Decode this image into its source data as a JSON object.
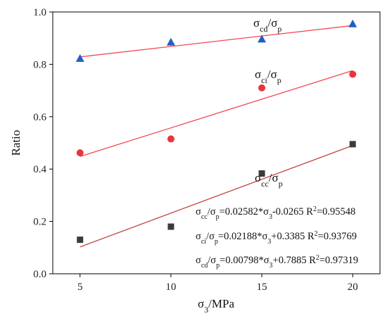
{
  "chart_data": {
    "type": "scatter",
    "xlabel_parts": [
      {
        "text": "σ",
        "sub": false
      },
      {
        "text": "3",
        "sub": true
      },
      {
        "text": "/MPa",
        "sub": false
      }
    ],
    "ylabel": "Ratio",
    "xlim": [
      3.5,
      21.5
    ],
    "ylim": [
      0,
      1.0
    ],
    "x_ticks": [
      5,
      10,
      15,
      20
    ],
    "y_ticks": [
      0.0,
      0.2,
      0.4,
      0.6,
      0.8,
      1.0
    ],
    "x_tick_labels": [
      "5",
      "10",
      "15",
      "20"
    ],
    "y_tick_labels": [
      "0.0",
      "0.2",
      "0.4",
      "0.6",
      "0.8",
      "1.0"
    ],
    "grid": false,
    "series": [
      {
        "key": "cd",
        "marker": "triangle",
        "color": "#1f5fc8",
        "fit_color": "#f2484f",
        "label_parts": [
          {
            "text": "σ",
            "sub": false
          },
          {
            "text": "cd",
            "sub": true
          },
          {
            "text": "/σ",
            "sub": false
          },
          {
            "text": "p",
            "sub": true
          }
        ],
        "x": [
          5,
          10,
          15,
          20
        ],
        "values": [
          0.823,
          0.885,
          0.897,
          0.955
        ],
        "fit": {
          "slope": 0.00798,
          "intercept": 0.7885,
          "x_range": [
            5,
            20
          ]
        }
      },
      {
        "key": "ci",
        "marker": "circle",
        "color": "#e8363c",
        "fit_color": "#f2484f",
        "label_parts": [
          {
            "text": "σ",
            "sub": false
          },
          {
            "text": "ci",
            "sub": true
          },
          {
            "text": "/σ",
            "sub": false
          },
          {
            "text": "p",
            "sub": true
          }
        ],
        "x": [
          5,
          10,
          15,
          20
        ],
        "values": [
          0.462,
          0.515,
          0.71,
          0.762
        ],
        "fit": {
          "slope": 0.02188,
          "intercept": 0.3385,
          "x_range": [
            5,
            20
          ]
        }
      },
      {
        "key": "cc",
        "marker": "square",
        "color": "#3b3b3b",
        "fit_color": "#c4423f",
        "label_parts": [
          {
            "text": "σ",
            "sub": false
          },
          {
            "text": "cc",
            "sub": true
          },
          {
            "text": "/σ",
            "sub": false
          },
          {
            "text": "p",
            "sub": true
          }
        ],
        "x": [
          5,
          10,
          15,
          20
        ],
        "values": [
          0.13,
          0.18,
          0.383,
          0.495
        ],
        "fit": {
          "slope": 0.02582,
          "intercept": -0.0265,
          "x_range": [
            5,
            20
          ]
        }
      }
    ],
    "equations": [
      {
        "key": "cc",
        "parts": [
          {
            "text": "σ",
            "sub": false
          },
          {
            "text": "cc",
            "sub": true
          },
          {
            "text": "/σ",
            "sub": false
          },
          {
            "text": "p",
            "sub": true
          },
          {
            "text": "=0.02582*σ",
            "sub": false
          },
          {
            "text": "3",
            "sub": true
          },
          {
            "text": "-0.0265 R",
            "sub": false
          },
          {
            "text": "2",
            "sup": true
          },
          {
            "text": "=0.95548",
            "sub": false
          }
        ]
      },
      {
        "key": "ci",
        "parts": [
          {
            "text": "σ",
            "sub": false
          },
          {
            "text": "ci",
            "sub": true
          },
          {
            "text": "/σ",
            "sub": false
          },
          {
            "text": "p",
            "sub": true
          },
          {
            "text": "=0.02188*σ",
            "sub": false
          },
          {
            "text": "3",
            "sub": true
          },
          {
            "text": "+0.3385 R",
            "sub": false
          },
          {
            "text": "2",
            "sup": true
          },
          {
            "text": "=0.93769",
            "sub": false
          }
        ]
      },
      {
        "key": "cd",
        "parts": [
          {
            "text": "σ",
            "sub": false
          },
          {
            "text": "cd",
            "sub": true
          },
          {
            "text": "/σ",
            "sub": false
          },
          {
            "text": "p",
            "sub": true
          },
          {
            "text": "=0.00798*σ",
            "sub": false
          },
          {
            "text": "3",
            "sub": true
          },
          {
            "text": "+0.7885 R",
            "sub": false
          },
          {
            "text": "2",
            "sup": true
          },
          {
            "text": "=0.97319",
            "sub": false
          }
        ]
      }
    ]
  }
}
